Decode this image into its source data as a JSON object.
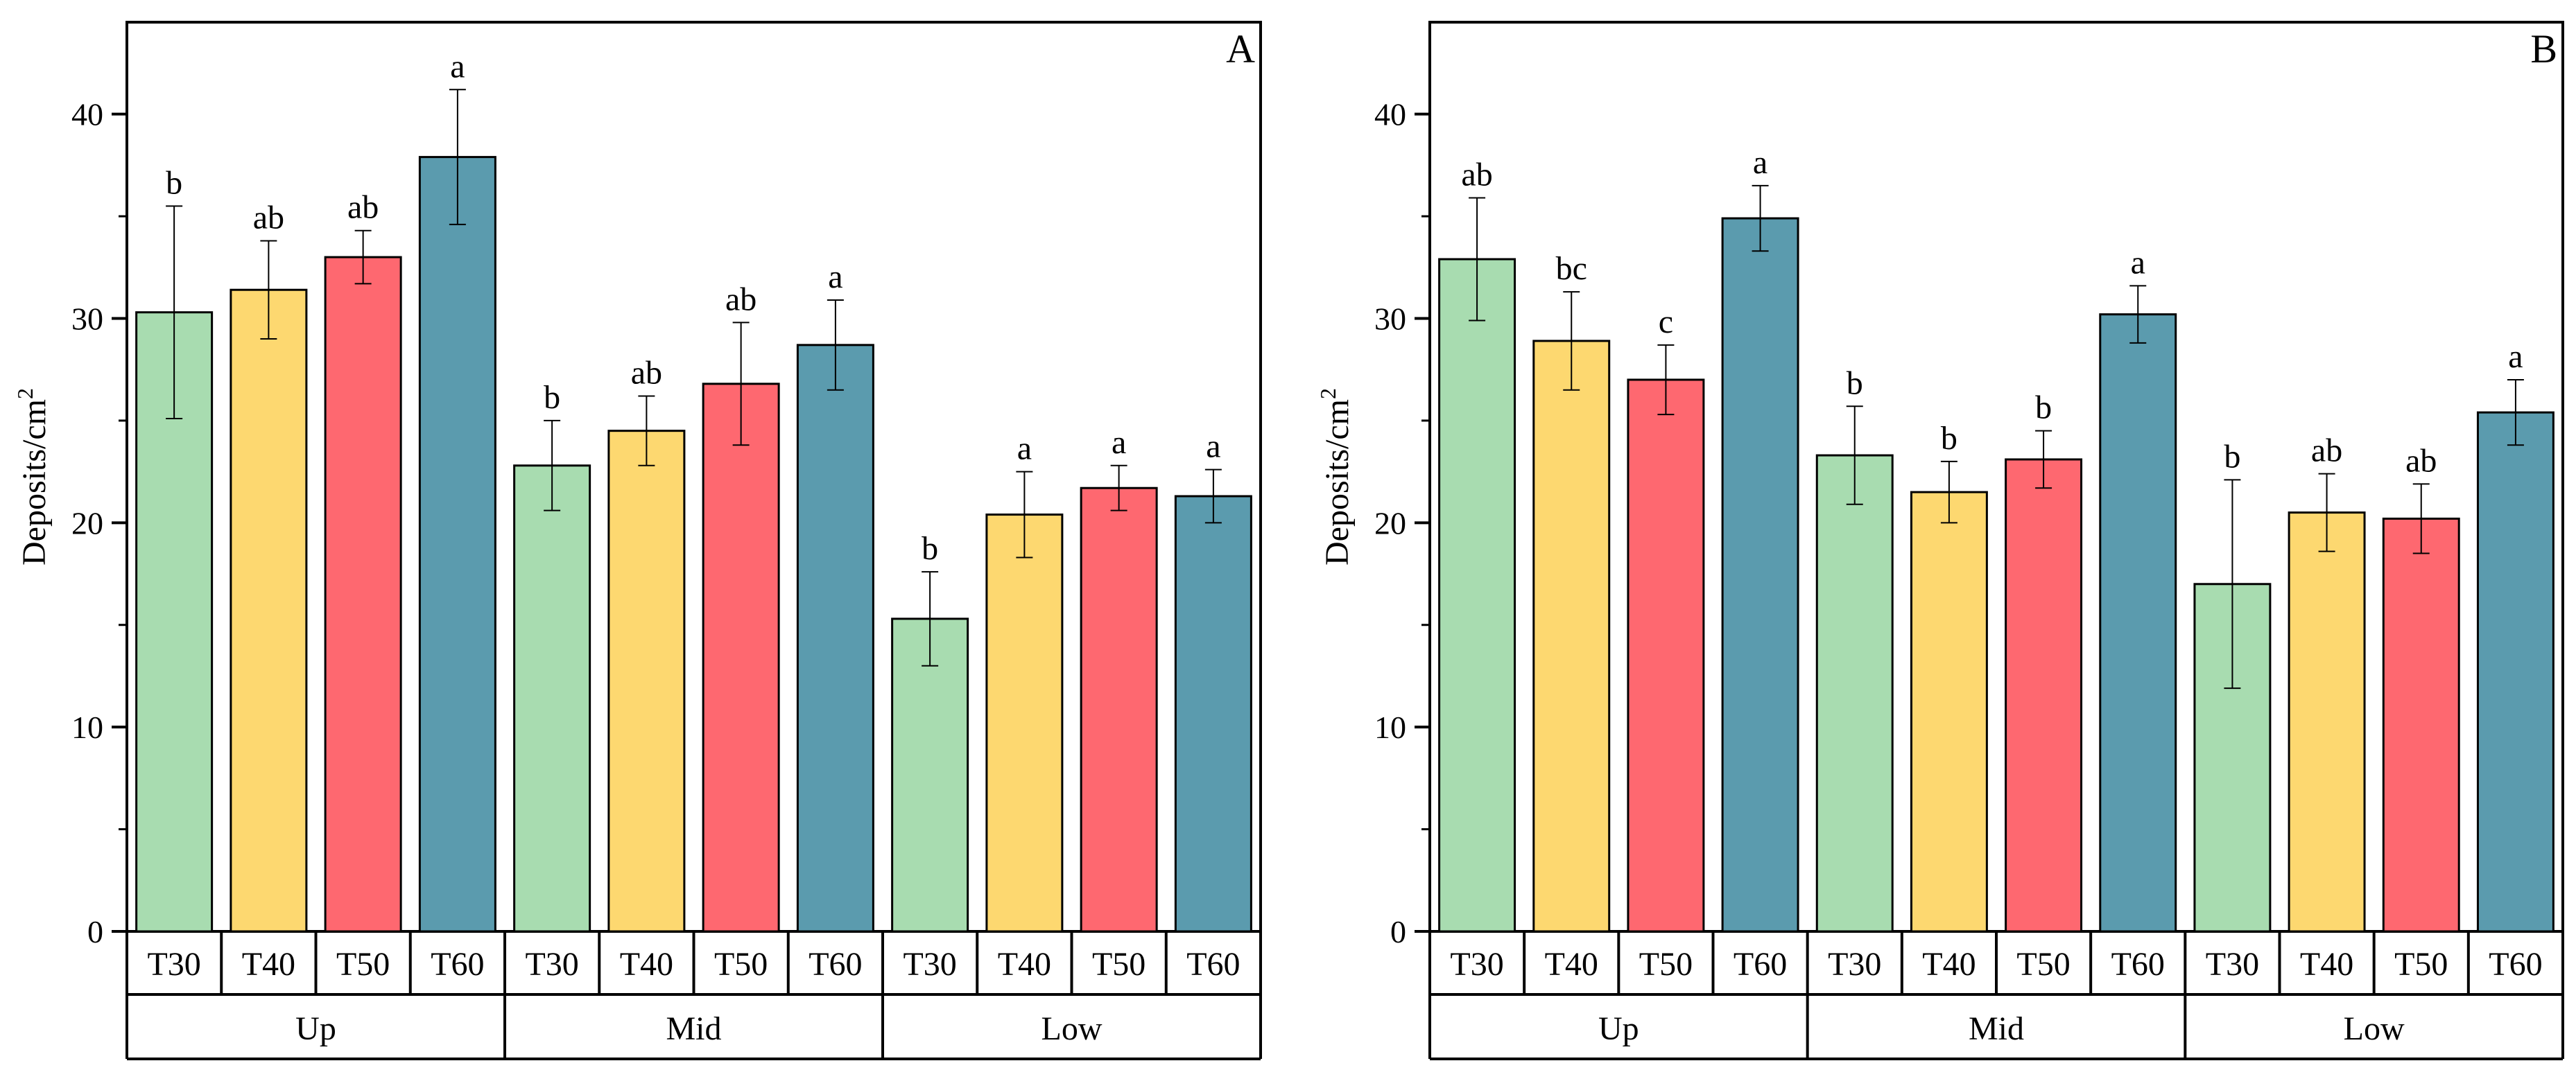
{
  "colors": {
    "T30": "#a8dcb0",
    "T40": "#fdd870",
    "T50": "#fe6870",
    "T60": "#5b9bae",
    "axis": "#000000"
  },
  "chart_data": [
    {
      "type": "bar",
      "panel_label": "A",
      "ylabel": "Deposits/cm",
      "ylabel_superscript": "2",
      "ylim": [
        0,
        44.5
      ],
      "yticks": [
        "0",
        "10",
        "20",
        "30",
        "40"
      ],
      "categories": [
        "T30",
        "T40",
        "T50",
        "T60"
      ],
      "groups": [
        {
          "name": "Up",
          "values": [
            30.3,
            31.4,
            33.0,
            37.9
          ],
          "errors": [
            5.2,
            2.4,
            1.3,
            3.3
          ],
          "letters": [
            "b",
            "ab",
            "ab",
            "a"
          ]
        },
        {
          "name": "Mid",
          "values": [
            22.8,
            24.5,
            26.8,
            28.7
          ],
          "errors": [
            2.2,
            1.7,
            3.0,
            2.2
          ],
          "letters": [
            "b",
            "ab",
            "ab",
            "a"
          ]
        },
        {
          "name": "Low",
          "values": [
            15.3,
            20.4,
            21.7,
            21.3
          ],
          "errors": [
            2.3,
            2.1,
            1.1,
            1.3
          ],
          "letters": [
            "b",
            "a",
            "a",
            "a"
          ]
        }
      ]
    },
    {
      "type": "bar",
      "panel_label": "B",
      "ylabel": "Deposits/cm",
      "ylabel_superscript": "2",
      "ylim": [
        0,
        44.5
      ],
      "yticks": [
        "0",
        "10",
        "20",
        "30",
        "40"
      ],
      "categories": [
        "T30",
        "T40",
        "T50",
        "T60"
      ],
      "groups": [
        {
          "name": "Up",
          "values": [
            32.9,
            28.9,
            27.0,
            34.9
          ],
          "errors": [
            3.0,
            2.4,
            1.7,
            1.6
          ],
          "letters": [
            "ab",
            "bc",
            "c",
            "a"
          ]
        },
        {
          "name": "Mid",
          "values": [
            23.3,
            21.5,
            23.1,
            30.2
          ],
          "errors": [
            2.4,
            1.5,
            1.4,
            1.4
          ],
          "letters": [
            "b",
            "b",
            "b",
            "a"
          ]
        },
        {
          "name": "Low",
          "values": [
            17.0,
            20.5,
            20.2,
            25.4
          ],
          "errors": [
            5.1,
            1.9,
            1.7,
            1.6
          ],
          "letters": [
            "b",
            "ab",
            "ab",
            "a"
          ]
        }
      ]
    }
  ]
}
